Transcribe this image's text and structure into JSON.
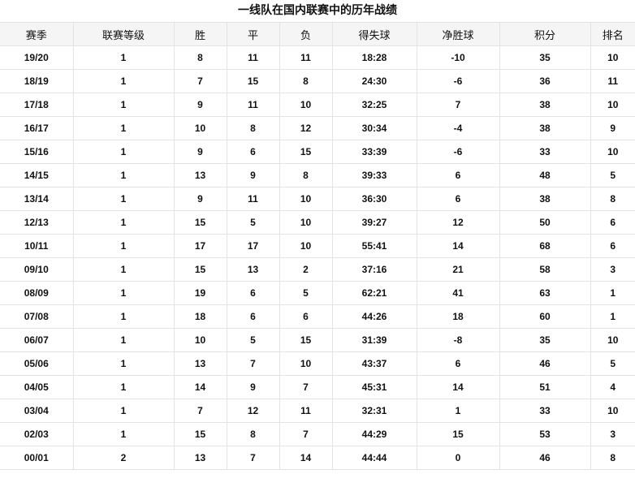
{
  "title": "一线队在国内联赛中的历年战绩",
  "columns": [
    "赛季",
    "联赛等级",
    "胜",
    "平",
    "负",
    "得失球",
    "净胜球",
    "积分",
    "排名"
  ],
  "rows": [
    [
      "19/20",
      "1",
      "8",
      "11",
      "11",
      "18:28",
      "-10",
      "35",
      "10"
    ],
    [
      "18/19",
      "1",
      "7",
      "15",
      "8",
      "24:30",
      "-6",
      "36",
      "11"
    ],
    [
      "17/18",
      "1",
      "9",
      "11",
      "10",
      "32:25",
      "7",
      "38",
      "10"
    ],
    [
      "16/17",
      "1",
      "10",
      "8",
      "12",
      "30:34",
      "-4",
      "38",
      "9"
    ],
    [
      "15/16",
      "1",
      "9",
      "6",
      "15",
      "33:39",
      "-6",
      "33",
      "10"
    ],
    [
      "14/15",
      "1",
      "13",
      "9",
      "8",
      "39:33",
      "6",
      "48",
      "5"
    ],
    [
      "13/14",
      "1",
      "9",
      "11",
      "10",
      "36:30",
      "6",
      "38",
      "8"
    ],
    [
      "12/13",
      "1",
      "15",
      "5",
      "10",
      "39:27",
      "12",
      "50",
      "6"
    ],
    [
      "10/11",
      "1",
      "17",
      "17",
      "10",
      "55:41",
      "14",
      "68",
      "6"
    ],
    [
      "09/10",
      "1",
      "15",
      "13",
      "2",
      "37:16",
      "21",
      "58",
      "3"
    ],
    [
      "08/09",
      "1",
      "19",
      "6",
      "5",
      "62:21",
      "41",
      "63",
      "1"
    ],
    [
      "07/08",
      "1",
      "18",
      "6",
      "6",
      "44:26",
      "18",
      "60",
      "1"
    ],
    [
      "06/07",
      "1",
      "10",
      "5",
      "15",
      "31:39",
      "-8",
      "35",
      "10"
    ],
    [
      "05/06",
      "1",
      "13",
      "7",
      "10",
      "43:37",
      "6",
      "46",
      "5"
    ],
    [
      "04/05",
      "1",
      "14",
      "9",
      "7",
      "45:31",
      "14",
      "51",
      "4"
    ],
    [
      "03/04",
      "1",
      "7",
      "12",
      "11",
      "32:31",
      "1",
      "33",
      "10"
    ],
    [
      "02/03",
      "1",
      "15",
      "8",
      "7",
      "44:29",
      "15",
      "53",
      "3"
    ],
    [
      "00/01",
      "2",
      "13",
      "7",
      "14",
      "44:44",
      "0",
      "46",
      "8"
    ]
  ]
}
